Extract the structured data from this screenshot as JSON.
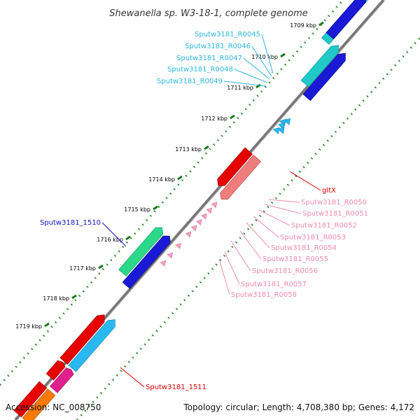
{
  "title": "Shewanella sp. W3-18-1, complete genome",
  "footer": {
    "accession": "Accession: NC_008750",
    "topology": "Topology: circular; Length: 4,708,380 bp; Genes: 4,172"
  },
  "colors": {
    "backbone": "#8c8c8c",
    "tick": "#1a7a1a",
    "cyan": "#1fc9c9",
    "blue": "#1a1ad6",
    "red": "#e60000",
    "salmon": "#ef7d7d",
    "pink": "#f7a1c4",
    "sky": "#29b8f0",
    "green": "#2bd88a",
    "magenta": "#e0208c",
    "label_cyan": "#2bb6e0",
    "label_pink": "#ef8ab0",
    "label_red": "#dd0000",
    "label_blue": "#1010c0"
  },
  "kbp_labels": [
    "1709 kbp",
    "1710 kbp",
    "1711 kbp",
    "1712 kbp",
    "1713 kbp",
    "1714 kbp",
    "1715 kbp",
    "1716 kbp",
    "1717 kbp",
    "1718 kbp",
    "1719 kbp"
  ],
  "gene_labels": {
    "cyan": [
      "Sputw3181_R0045",
      "Sputw3181_R0046",
      "Sputw3181_R0047",
      "Sputw3181_R0048",
      "Sputw3181_R0049"
    ],
    "pink": [
      "Sputw3181_R0050",
      "Sputw3181_R0051",
      "Sputw3181_R0052",
      "Sputw3181_R0053",
      "Sputw3181_R0054",
      "Sputw3181_R0055",
      "Sputw3181_R0056",
      "Sputw3181_R0057",
      "Sputw3181_R0058"
    ],
    "gltX": "gltX",
    "blue_left": "Sputw3181_1510",
    "red_bottom": "Sputw3181_1511"
  }
}
